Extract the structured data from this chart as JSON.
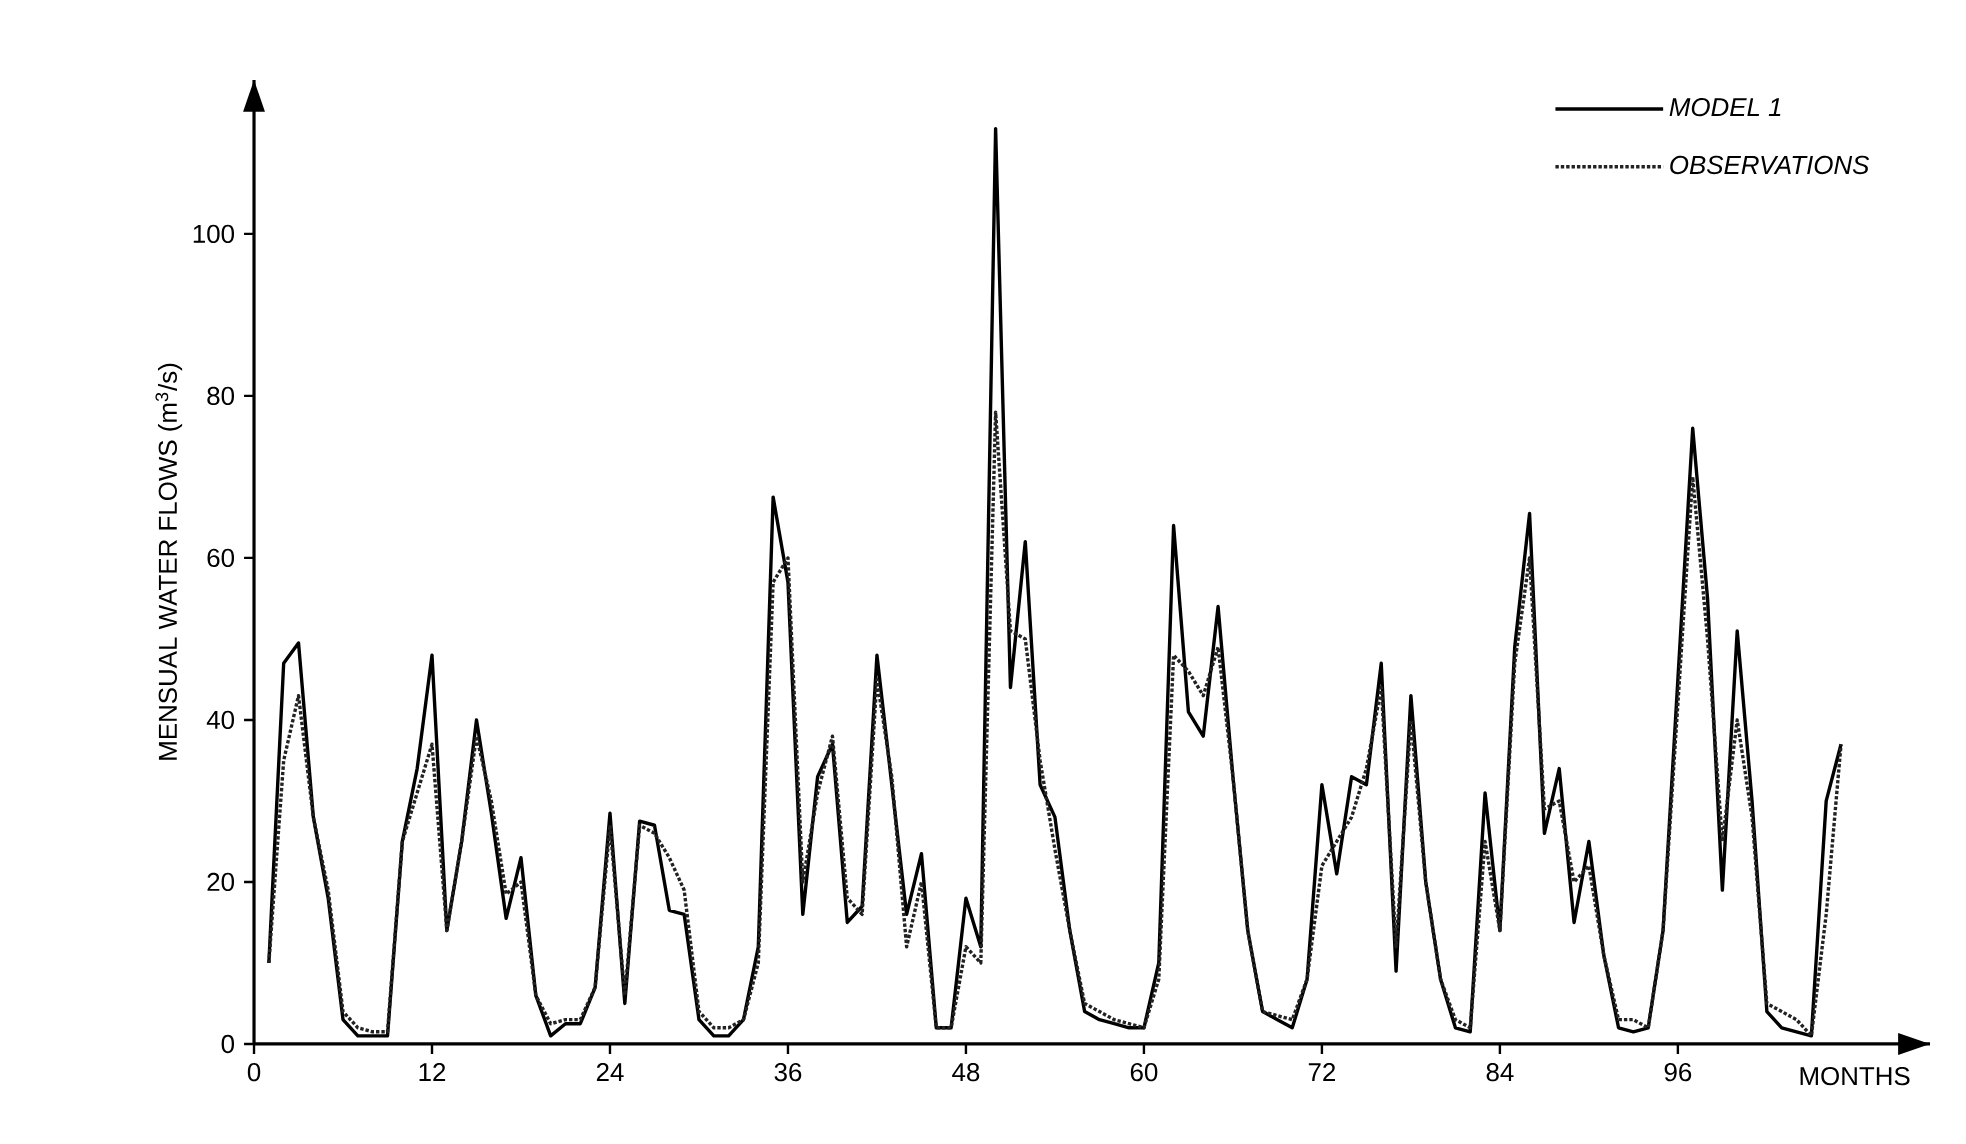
{
  "chart_data": {
    "type": "line",
    "xlabel": "MONTHS",
    "ylabel": "MENSUAL WATER FLOWS (m$^{3}$/s)",
    "x": [
      1,
      2,
      3,
      4,
      5,
      6,
      7,
      8,
      9,
      10,
      11,
      12,
      13,
      14,
      15,
      16,
      17,
      18,
      19,
      20,
      21,
      22,
      23,
      24,
      25,
      26,
      27,
      28,
      29,
      30,
      31,
      32,
      33,
      34,
      35,
      36,
      37,
      38,
      39,
      40,
      41,
      42,
      43,
      44,
      45,
      46,
      47,
      48,
      49,
      50,
      51,
      52,
      53,
      54,
      55,
      56,
      57,
      58,
      59,
      60,
      61,
      62,
      63,
      64,
      65,
      66,
      67,
      68,
      69,
      70,
      71,
      72,
      73,
      74,
      75,
      76,
      77,
      78,
      79,
      80,
      81,
      82,
      83,
      84,
      85,
      86,
      87,
      88,
      89,
      90,
      91,
      92,
      93,
      94,
      95,
      96,
      97,
      98,
      99,
      100,
      101,
      102,
      103,
      104,
      105,
      106,
      107
    ],
    "series": [
      {
        "name": "MODEL 1",
        "color": "#000000",
        "line_style": "solid",
        "values": [
          10,
          47,
          49.5,
          28,
          18,
          3,
          1,
          1,
          1,
          25,
          34,
          48,
          14,
          25,
          40,
          28.5,
          15.5,
          23,
          6,
          1,
          2.5,
          2.5,
          7,
          28.5,
          5,
          27.5,
          27,
          16.5,
          16,
          3,
          1,
          1,
          3,
          12,
          67.5,
          57,
          16,
          33,
          37,
          15,
          17,
          48,
          32,
          16,
          23.5,
          2,
          2,
          18,
          12,
          113,
          44,
          62,
          32,
          28,
          14,
          4,
          3,
          2.5,
          2,
          2,
          10,
          64,
          41,
          38,
          54,
          33,
          14,
          4,
          3,
          2,
          8,
          32,
          21,
          33,
          32,
          47,
          9,
          43,
          20,
          8,
          2,
          1.5,
          31,
          14,
          49,
          65.5,
          26,
          34,
          15,
          25,
          11,
          2,
          1.5,
          2,
          14,
          45,
          76,
          55,
          19,
          51,
          30,
          4,
          2,
          1.5,
          1,
          30,
          37
        ]
      },
      {
        "name": "OBSERVATIONS",
        "color": "#222222",
        "line_style": "dotted",
        "values": [
          10,
          35,
          43,
          28,
          19,
          4,
          2,
          1.5,
          1.5,
          25,
          31,
          37,
          14,
          25,
          38,
          30,
          18.5,
          20,
          6,
          2.5,
          3,
          3,
          7,
          27,
          6,
          27,
          26,
          23,
          19,
          4,
          2,
          2,
          3,
          10,
          57,
          60,
          20,
          31,
          38,
          18,
          16,
          45,
          33,
          12,
          20,
          2,
          2,
          12,
          10,
          78,
          51,
          50,
          35,
          24,
          14,
          5,
          4,
          3,
          2.5,
          2,
          8,
          48,
          46,
          43,
          49,
          33,
          14,
          4,
          3.5,
          3,
          8,
          22,
          25,
          28,
          34,
          44,
          12,
          40,
          20,
          8,
          3,
          2,
          25,
          14,
          47,
          60,
          29,
          30,
          20,
          22,
          11,
          3,
          3,
          2,
          14,
          42,
          70,
          50,
          25,
          40,
          28,
          5,
          4,
          3,
          1,
          16,
          37
        ]
      }
    ],
    "xlim": [
      0,
      113
    ],
    "ylim": [
      0,
      119
    ],
    "xticks": [
      0,
      12,
      24,
      36,
      48,
      60,
      72,
      84,
      96
    ],
    "yticks": [
      0,
      20,
      40,
      60,
      80,
      100
    ],
    "grid": false,
    "legend": "top right",
    "marker": "none"
  }
}
